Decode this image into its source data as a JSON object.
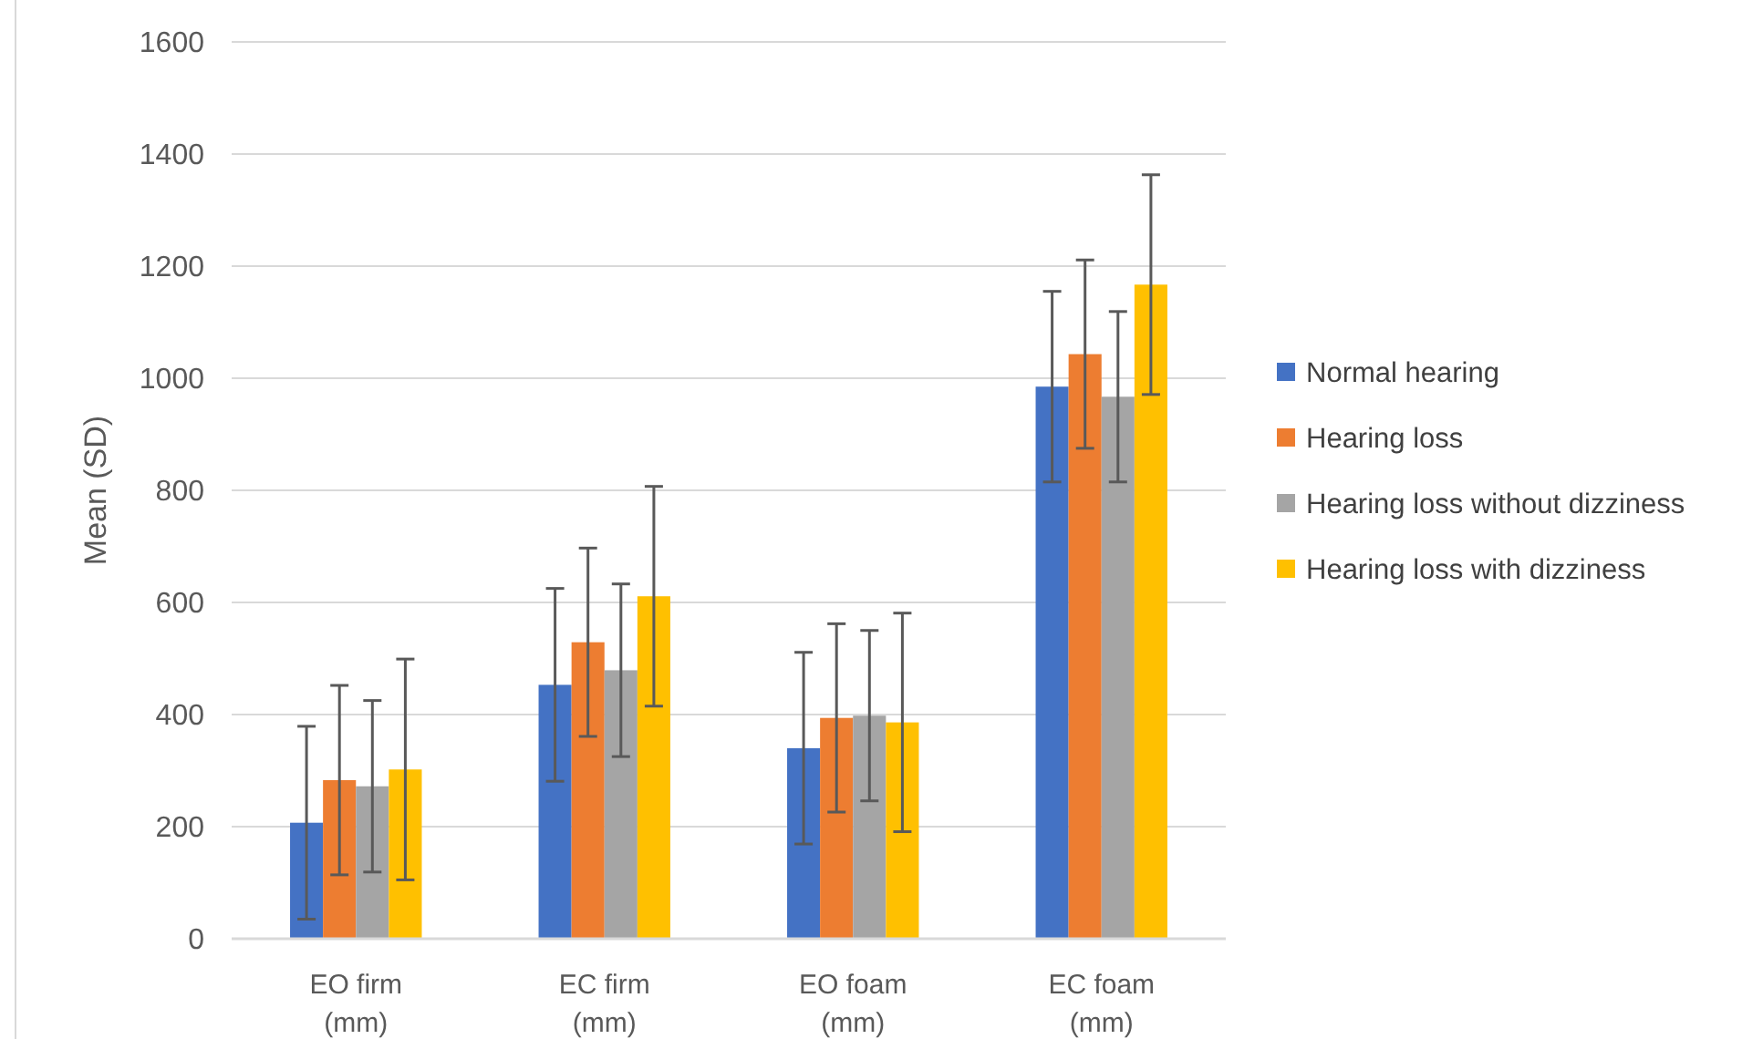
{
  "chart_data": {
    "type": "bar",
    "ylabel": "Mean (SD)",
    "categories": [
      "EO firm\n(mm)",
      "EC firm\n(mm)",
      "EO foam\n(mm)",
      "EC foam\n(mm)"
    ],
    "series": [
      {
        "name": "Normal hearing",
        "color": "#4472c4",
        "values": [
          207,
          453,
          340,
          985
        ],
        "errors": [
          172,
          172,
          171,
          170
        ]
      },
      {
        "name": "Hearing loss",
        "color": "#ed7d31",
        "values": [
          283,
          529,
          394,
          1043
        ],
        "errors": [
          169,
          168,
          168,
          168
        ]
      },
      {
        "name": "Hearing loss without dizziness",
        "color": "#a5a5a5",
        "values": [
          272,
          479,
          398,
          967
        ],
        "errors": [
          153,
          154,
          152,
          152
        ]
      },
      {
        "name": "Hearing loss with dizziness",
        "color": "#ffc000",
        "values": [
          302,
          611,
          386,
          1167
        ],
        "errors": [
          197,
          196,
          195,
          196
        ]
      }
    ],
    "ylim": [
      0,
      1600
    ],
    "yticks": [
      0,
      200,
      400,
      600,
      800,
      1000,
      1200,
      1400,
      1600
    ],
    "grid": "y",
    "legend": "right"
  }
}
